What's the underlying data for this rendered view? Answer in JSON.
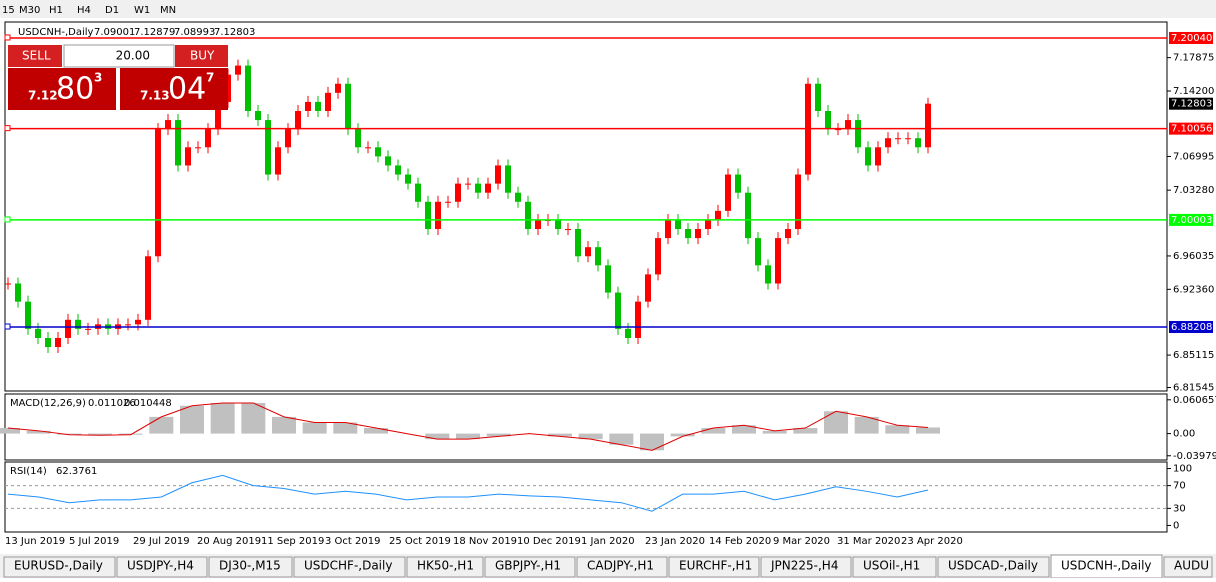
{
  "toolbar": {
    "timeframes": [
      "15",
      "M30",
      "H1",
      "H4",
      "D1",
      "W1",
      "MN"
    ]
  },
  "trade_panel": {
    "sell": "SELL",
    "lot": "20.00",
    "buy": "BUY",
    "bid": [
      "7.12",
      "80",
      "3"
    ],
    "ask": [
      "7.13",
      "04",
      "7"
    ]
  },
  "chart": {
    "type": "candlestick",
    "symbol": "USDCNH-,Daily",
    "ohlc": [
      7.09001,
      7.12879,
      7.08993,
      7.12803
    ],
    "up_color": "#ff0000",
    "down_color": "#00c000",
    "closes": [
      6.93,
      6.91,
      6.88,
      6.87,
      6.86,
      6.87,
      6.89,
      6.88,
      6.88,
      6.885,
      6.88,
      6.885,
      6.885,
      6.89,
      6.96,
      7.1,
      7.11,
      7.06,
      7.08,
      7.08,
      7.1,
      7.13,
      7.16,
      7.17,
      7.12,
      7.11,
      7.05,
      7.08,
      7.1,
      7.12,
      7.13,
      7.12,
      7.14,
      7.15,
      7.1,
      7.08,
      7.08,
      7.07,
      7.06,
      7.05,
      7.04,
      7.02,
      6.99,
      7.02,
      7.02,
      7.04,
      7.04,
      7.03,
      7.04,
      7.06,
      7.03,
      7.02,
      6.99,
      7.0,
      7.0,
      6.99,
      6.99,
      6.96,
      6.97,
      6.95,
      6.92,
      6.88,
      6.87,
      6.91,
      6.94,
      6.98,
      7.0,
      6.99,
      6.98,
      6.99,
      7.0,
      7.01,
      7.05,
      7.03,
      6.98,
      6.95,
      6.93,
      6.98,
      6.99,
      7.05,
      7.15,
      7.12,
      7.1,
      7.1,
      7.11,
      7.08,
      7.06,
      7.08,
      7.09,
      7.09,
      7.09,
      7.08,
      7.12803
    ],
    "ylim": [
      6.8116,
      7.218
    ],
    "yticks": [
      {
        "value": 7.17875,
        "label": "7.17875"
      },
      {
        "value": 7.142,
        "label": "7.14200"
      },
      7.06995,
      {
        "value": 7.0328,
        "label": "7.03280"
      },
      7.06995,
      {
        "value": 6.96035,
        "label": "6.96035"
      },
      {
        "value": 6.9236,
        "label": "6.92360"
      },
      7.06995,
      6.85115,
      6.81545
    ],
    "levels": [
      {
        "value": 7.2004,
        "label": "7.20040",
        "color": "#ff0000"
      },
      {
        "value": 7.10056,
        "label": "7.10056",
        "color": "#ff0000"
      },
      {
        "value": 7.00003,
        "label": "7.00003",
        "color": "#00ff00"
      },
      {
        "value": 6.88208,
        "label": "6.88208",
        "color": "#0000cc"
      }
    ],
    "current_price": 7.12803
  },
  "macd": {
    "label": "MACD(12,26,9)",
    "main": 0.011026,
    "signal": 0.010448,
    "values": [
      0.01,
      0.005,
      -0.002,
      -0.003,
      -0.002,
      0.03,
      0.05,
      0.055,
      0.055,
      0.03,
      0.02,
      0.02,
      0.01,
      0.0,
      -0.01,
      -0.01,
      -0.005,
      0.0,
      -0.005,
      -0.01,
      -0.02,
      -0.03,
      -0.005,
      0.01,
      0.015,
      0.005,
      0.01,
      0.04,
      0.03,
      0.015,
      0.011026
    ],
    "ylim": [
      -0.0438,
      0.0675
    ],
    "yticks": [
      0.060657,
      {
        "value": 0,
        "label": "0.00"
      },
      -0.039792
    ]
  },
  "rsi": {
    "label": "RSI(14)",
    "last": 62.3761,
    "values": [
      55,
      50,
      40,
      45,
      45,
      50,
      75,
      88,
      70,
      65,
      55,
      60,
      55,
      45,
      50,
      50,
      55,
      52,
      50,
      45,
      40,
      25,
      55,
      55,
      60,
      45,
      55,
      68,
      60,
      50,
      62.3761
    ],
    "ylim": [
      -8,
      108
    ],
    "yticks": [
      100,
      70,
      30,
      0
    ],
    "levels": [
      70,
      30
    ]
  },
  "dates": [
    "13 Jun 2019",
    "5 Jul 2019",
    "29 Jul 2019",
    "20 Aug 2019",
    "11 Sep 2019",
    "3 Oct 2019",
    "25 Oct 2019",
    "18 Nov 2019",
    "10 Dec 2019",
    "1 Jan 2020",
    "23 Jan 2020",
    "14 Feb 2020",
    "9 Mar 2020",
    "31 Mar 2020",
    "23 Apr 2020"
  ],
  "tabs": [
    "EURUSD-,Daily",
    "USDJPY-,H4",
    "DJ30-,M15",
    "USDCHF-,Daily",
    "HK50-,H1",
    "GBPJPY-,H1",
    "CADJPY-,H1",
    "EURCHF-,H1",
    "JPN225-,H4",
    "USOil-,H1",
    "USDCAD-,Daily",
    "USDCNH-,Daily",
    "AUDU"
  ],
  "active_tab": 11
}
